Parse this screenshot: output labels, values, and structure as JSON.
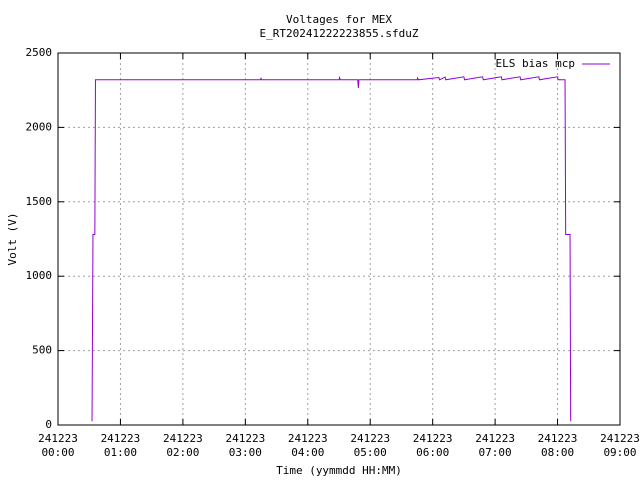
{
  "chart_data": {
    "type": "line",
    "title": "Voltages for MEX",
    "subtitle": "E_RT20241222223855.sfduZ",
    "x_label": "Time (yymmdd HH:MM)",
    "y_label": "Volt (V)",
    "xlim": [
      0,
      9
    ],
    "ylim": [
      0,
      2500
    ],
    "xticks": [
      {
        "value": 0,
        "label": "241223 00:00"
      },
      {
        "value": 1,
        "label": "241223 01:00"
      },
      {
        "value": 2,
        "label": "241223 02:00"
      },
      {
        "value": 3,
        "label": "241223 03:00"
      },
      {
        "value": 4,
        "label": "241223 04:00"
      },
      {
        "value": 5,
        "label": "241223 05:00"
      },
      {
        "value": 6,
        "label": "241223 06:00"
      },
      {
        "value": 7,
        "label": "241223 07:00"
      },
      {
        "value": 8,
        "label": "241223 08:00"
      },
      {
        "value": 9,
        "label": "241223 09:00"
      }
    ],
    "yticks": [
      0,
      500,
      1000,
      1500,
      2000,
      2500
    ],
    "grid": true,
    "legend": "top-right",
    "x": [
      0.545,
      0.56,
      0.59,
      0.6,
      3.24,
      3.25,
      3.26,
      4.5,
      4.51,
      4.52,
      4.8,
      4.81,
      4.82,
      5.75,
      5.76,
      5.77,
      6.1,
      6.11,
      6.2,
      6.21,
      6.5,
      6.51,
      6.8,
      6.81,
      7.1,
      7.11,
      7.4,
      7.41,
      7.7,
      7.71,
      8.0,
      8.01,
      8.12,
      8.13,
      8.2,
      8.21
    ],
    "series": [
      {
        "name": "ELS bias mcp",
        "color": "#9400d3",
        "values": [
          25,
          1280,
          1280,
          2320,
          2320,
          2330,
          2320,
          2320,
          2335,
          2320,
          2320,
          2265,
          2320,
          2320,
          2332,
          2320,
          2335,
          2320,
          2338,
          2320,
          2340,
          2320,
          2340,
          2320,
          2340,
          2320,
          2340,
          2320,
          2340,
          2320,
          2340,
          2320,
          2320,
          1280,
          1280,
          25
        ]
      }
    ]
  }
}
